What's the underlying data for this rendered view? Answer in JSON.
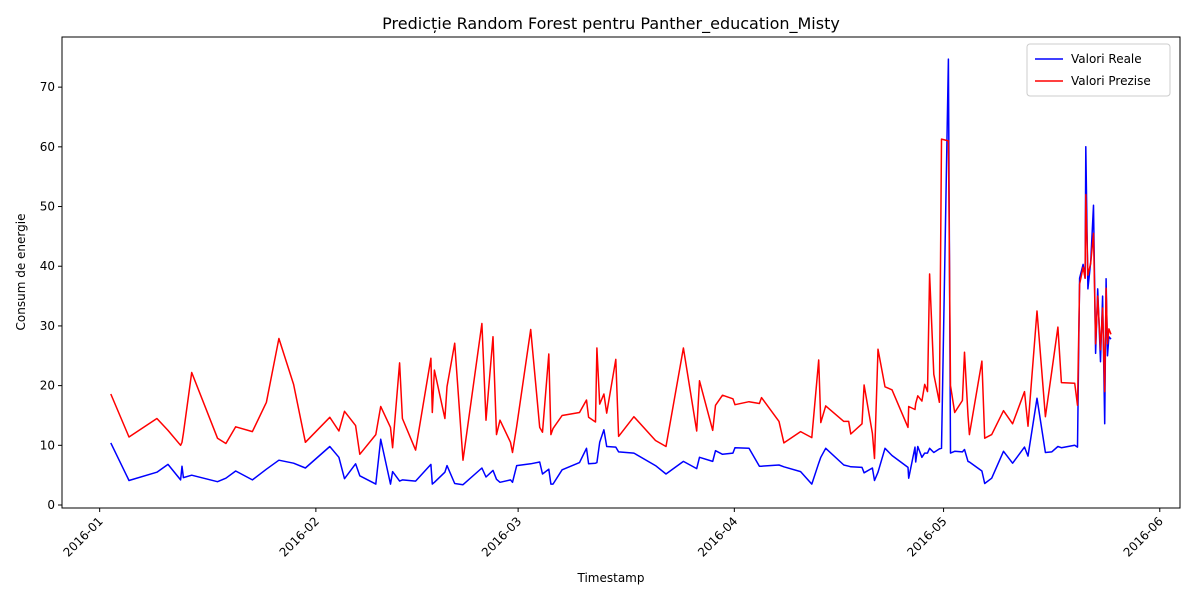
{
  "chart_data": {
    "type": "line",
    "title": "Predicție Random Forest pentru Panther_education_Misty",
    "x_label": "Timestamp",
    "y_label": "Consum de energie",
    "x": [
      1.6,
      4.2,
      8.2,
      9.8,
      11.6,
      11.8,
      12.0,
      13.2,
      16.9,
      18.1,
      19.5,
      21.9,
      23.9,
      25.7,
      27.8,
      29.5,
      33.0,
      34.3,
      35.1,
      36.7,
      37.3,
      39.6,
      40.3,
      41.7,
      42.0,
      43.0,
      43.4,
      45.3,
      47.5,
      47.7,
      48.0,
      49.5,
      49.8,
      50.9,
      52.1,
      54.8,
      55.4,
      56.4,
      56.9,
      57.4,
      58.9,
      59.2,
      59.8,
      61.8,
      63.1,
      63.5,
      64.4,
      64.7,
      65.0,
      66.3,
      68.8,
      69.8,
      70.1,
      71.1,
      71.3,
      71.7,
      72.3,
      72.7,
      74.0,
      74.4,
      76.6,
      79.7,
      81.2,
      83.7,
      85.6,
      86.0,
      87.9,
      88.3,
      89.3,
      90.8,
      91.1,
      93.1,
      94.6,
      94.9,
      97.4,
      98.1,
      100.5,
      102.1,
      103.1,
      103.4,
      104.1,
      106.7,
      107.4,
      107.7,
      109.3,
      109.6,
      110.8,
      111.1,
      111.6,
      112.6,
      113.6,
      115.9,
      116.0,
      116.9,
      117.0,
      117.3,
      117.9,
      118.3,
      118.7,
      119.0,
      119.6,
      120.4,
      120.7,
      121.7,
      122.0,
      122.6,
      123.7,
      124.0,
      124.5,
      124.7,
      126.5,
      126.9,
      127.9,
      129.6,
      130.9,
      132.6,
      133.1,
      134.4,
      135.6,
      136.5,
      137.4,
      137.9,
      139.8,
      140.2,
      140.5,
      141.0,
      141.3,
      141.4,
      141.7,
      142.1,
      142.5,
      142.8,
      143.1,
      143.5,
      143.8,
      144.1,
      144.3,
      144.5,
      144.7,
      145.0
    ],
    "series": [
      {
        "name": "Valori Reale",
        "color": "#0000ff",
        "values": [
          10.4,
          4.1,
          5.5,
          6.8,
          4.2,
          6.5,
          4.6,
          5.0,
          3.9,
          4.5,
          5.7,
          4.2,
          6.0,
          7.5,
          7.0,
          6.2,
          9.8,
          8.0,
          4.4,
          6.9,
          4.9,
          3.5,
          11.0,
          3.5,
          5.6,
          4.0,
          4.2,
          4.0,
          6.8,
          3.5,
          3.8,
          5.5,
          6.6,
          3.6,
          3.4,
          6.2,
          4.7,
          5.8,
          4.3,
          3.8,
          4.2,
          3.8,
          6.6,
          6.9,
          7.2,
          5.2,
          6.0,
          3.5,
          3.5,
          5.9,
          7.1,
          9.5,
          6.9,
          7.0,
          7.1,
          10.5,
          12.6,
          9.8,
          9.7,
          8.9,
          8.7,
          6.6,
          5.2,
          7.3,
          6.1,
          8.0,
          7.3,
          9.1,
          8.5,
          8.7,
          9.6,
          9.5,
          6.5,
          6.5,
          6.7,
          6.4,
          5.6,
          3.5,
          7.0,
          8.0,
          9.5,
          6.7,
          6.5,
          6.4,
          6.3,
          5.4,
          6.2,
          4.1,
          5.5,
          9.5,
          8.3,
          6.3,
          4.5,
          9.7,
          7.2,
          9.8,
          8.0,
          8.7,
          8.7,
          9.5,
          8.8,
          9.4,
          9.5,
          74.7,
          8.7,
          9.0,
          8.9,
          9.3,
          7.3,
          7.2,
          5.7,
          3.6,
          4.5,
          9.0,
          7.0,
          9.7,
          8.2,
          17.9,
          8.8,
          8.9,
          9.8,
          9.6,
          10.0,
          9.7,
          38.0,
          40.3,
          38.0,
          60.0,
          36.2,
          40.7,
          50.2,
          25.4,
          36.2,
          24.0,
          35.0,
          13.6,
          37.9,
          25.0,
          28.2,
          27.8
        ]
      },
      {
        "name": "Valori Prezise",
        "color": "#ff0000",
        "values": [
          18.6,
          11.4,
          14.5,
          12.5,
          10.0,
          10.5,
          12.0,
          22.2,
          11.2,
          10.3,
          13.1,
          12.3,
          17.2,
          27.9,
          20.2,
          10.5,
          14.7,
          12.4,
          15.7,
          13.3,
          8.5,
          11.8,
          16.5,
          13.0,
          9.6,
          23.8,
          14.5,
          9.2,
          24.6,
          15.5,
          22.6,
          14.5,
          19.8,
          27.1,
          7.5,
          30.4,
          14.2,
          28.2,
          11.8,
          14.2,
          10.5,
          8.8,
          13.2,
          29.4,
          13.0,
          12.2,
          25.3,
          11.8,
          12.8,
          15.0,
          15.5,
          17.6,
          14.7,
          13.9,
          26.3,
          16.9,
          18.6,
          15.4,
          24.4,
          11.5,
          14.8,
          10.8,
          9.8,
          26.3,
          12.4,
          20.8,
          12.5,
          16.7,
          18.4,
          17.8,
          16.8,
          17.3,
          17.0,
          18.0,
          14.0,
          10.4,
          12.3,
          11.3,
          24.3,
          13.8,
          16.6,
          14.0,
          14.0,
          11.9,
          13.6,
          20.1,
          12.0,
          7.8,
          26.1,
          19.8,
          19.3,
          13.0,
          16.5,
          16.0,
          17.0,
          18.3,
          17.4,
          20.2,
          19.0,
          38.7,
          21.9,
          17.2,
          61.3,
          61.0,
          20.0,
          15.5,
          17.5,
          25.6,
          15.0,
          11.8,
          24.1,
          11.2,
          11.8,
          15.8,
          13.6,
          19.0,
          13.2,
          32.5,
          14.8,
          22.3,
          29.8,
          20.5,
          20.4,
          16.7,
          37.0,
          39.8,
          38.0,
          52.0,
          38.5,
          40.5,
          45.5,
          27.0,
          35.0,
          26.0,
          33.0,
          19.0,
          36.3,
          27.0,
          29.5,
          28.6
        ]
      }
    ],
    "xlim": [
      -5.4,
      154.9
    ],
    "xticks": [
      {
        "value": 0,
        "label": "2016-01"
      },
      {
        "value": 31,
        "label": "2016-02"
      },
      {
        "value": 60,
        "label": "2016-03"
      },
      {
        "value": 91,
        "label": "2016-04"
      },
      {
        "value": 121,
        "label": "2016-05"
      },
      {
        "value": 152,
        "label": "2016-06"
      }
    ],
    "ylim": [
      -0.5,
      78.4
    ],
    "yticks": [
      0,
      10,
      20,
      30,
      40,
      50,
      60,
      70
    ],
    "legend": "upper right",
    "grid": false
  }
}
